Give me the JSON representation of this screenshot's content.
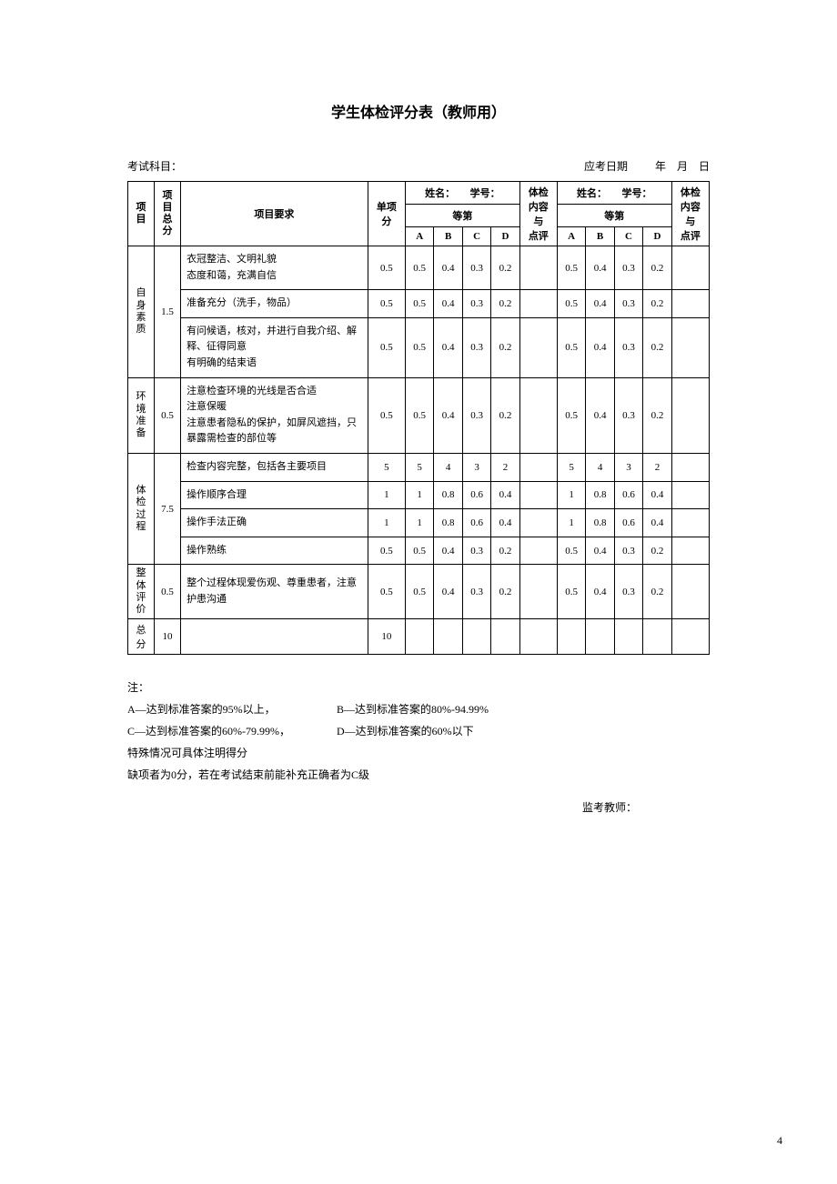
{
  "title": "学生体检评分表（教师用）",
  "meta": {
    "subject_label": "考试科目：",
    "date_label": "应考日期",
    "date_sep": "年　月　日"
  },
  "head": {
    "project": "项目",
    "project_total": "项目\n总分",
    "project_req": "项目要求",
    "single_score": "单项分",
    "name_label": "姓名：",
    "id_label": "学号：",
    "grade_label": "等第",
    "A": "A",
    "B": "B",
    "C": "C",
    "D": "D",
    "content_comment": "体检\n内容\n与\n点评"
  },
  "sections": [
    {
      "name": "自身\n素质",
      "total": "1.5",
      "rows": [
        {
          "req": "衣冠整洁、文明礼貌\n态度和蔼，充满自信",
          "single": "0.5",
          "g": [
            "0.5",
            "0.4",
            "0.3",
            "0.2"
          ]
        },
        {
          "req": "准备充分（洗手，物品）",
          "single": "0.5",
          "g": [
            "0.5",
            "0.4",
            "0.3",
            "0.2"
          ]
        },
        {
          "req": "有问候语，核对，并进行自我介绍、解释、征得同意\n有明确的结束语",
          "single": "0.5",
          "g": [
            "0.5",
            "0.4",
            "0.3",
            "0.2"
          ]
        }
      ]
    },
    {
      "name": "环境\n准备",
      "total": "0.5",
      "rows": [
        {
          "req": "注意检查环境的光线是否合适\n注意保暖\n注意患者隐私的保护，如屏风遮挡，只暴露需检查的部位等",
          "single": "0.5",
          "g": [
            "0.5",
            "0.4",
            "0.3",
            "0.2"
          ]
        }
      ]
    },
    {
      "name": "体检\n过程",
      "total": "7.5",
      "rows": [
        {
          "req": "检查内容完整，包括各主要项目",
          "single": "5",
          "g": [
            "5",
            "4",
            "3",
            "2"
          ]
        },
        {
          "req": "操作顺序合理",
          "single": "1",
          "g": [
            "1",
            "0.8",
            "0.6",
            "0.4"
          ]
        },
        {
          "req": "操作手法正确",
          "single": "1",
          "g": [
            "1",
            "0.8",
            "0.6",
            "0.4"
          ]
        },
        {
          "req": "操作熟练",
          "single": "0.5",
          "g": [
            "0.5",
            "0.4",
            "0.3",
            "0.2"
          ]
        }
      ]
    },
    {
      "name": "整体\n评价",
      "total": "0.5",
      "rows": [
        {
          "req": "整个过程体现爱伤观、尊重患者，注意护患沟通",
          "single": "0.5",
          "g": [
            "0.5",
            "0.4",
            "0.3",
            "0.2"
          ]
        }
      ]
    }
  ],
  "total_row": {
    "name": "总分",
    "total": "10",
    "single": "10"
  },
  "notes": {
    "header": "注：",
    "a": "A—达到标准答案的95%以上，",
    "b": "B—达到标准答案的80%-94.99%",
    "c": "C—达到标准答案的60%-79.99%，",
    "d": "D—达到标准答案的60%以下",
    "special": "特殊情况可具体注明得分",
    "missing": "缺项者为0分，若在考试结束前能补充正确者为C级",
    "invigilator": "监考教师："
  },
  "page_number": "4"
}
